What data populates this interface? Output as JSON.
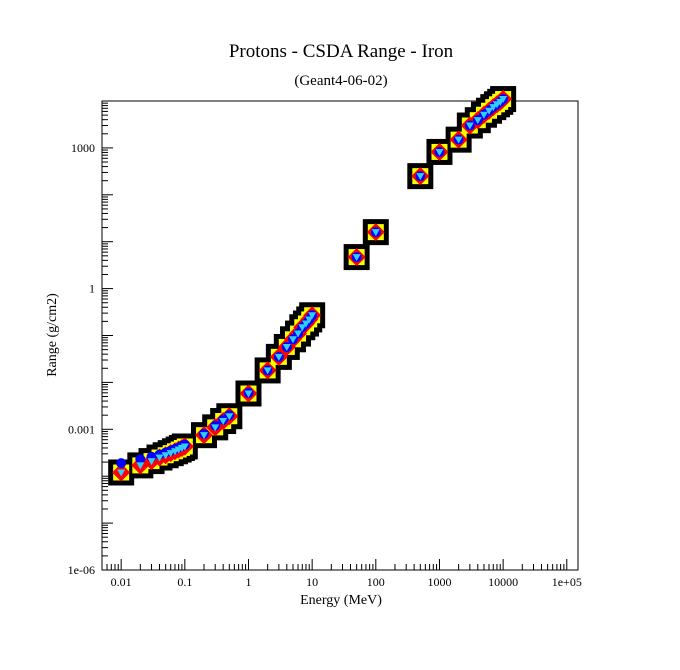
{
  "chart_data": {
    "type": "scatter",
    "title": "Protons - CSDA Range - Iron",
    "subtitle": "(Geant4-06-02)",
    "xlabel": "Energy (MeV)",
    "ylabel": "Range (g/cm2)",
    "x_scale": "log",
    "y_scale": "log",
    "xlim": [
      0.005,
      150000
    ],
    "ylim": [
      1e-06,
      10000
    ],
    "x_ticks": [
      {
        "value": 0.01,
        "label": "0.01"
      },
      {
        "value": 0.1,
        "label": "0.1"
      },
      {
        "value": 1,
        "label": "1"
      },
      {
        "value": 10,
        "label": "10"
      },
      {
        "value": 100,
        "label": "100"
      },
      {
        "value": 1000,
        "label": "1000"
      },
      {
        "value": 10000,
        "label": "10000"
      },
      {
        "value": 100000,
        "label": "1e+05"
      }
    ],
    "y_ticks": [
      {
        "value": 1e-06,
        "label": "1e-06"
      },
      {
        "value": 0.001,
        "label": "0.001"
      },
      {
        "value": 1,
        "label": "1"
      },
      {
        "value": 1000,
        "label": "1000"
      }
    ],
    "grid": false,
    "legend": "none",
    "x": [
      0.01,
      0.02,
      0.03,
      0.04,
      0.05,
      0.06,
      0.07,
      0.08,
      0.09,
      0.1,
      0.2,
      0.3,
      0.4,
      0.5,
      1,
      2,
      3,
      4,
      5,
      6,
      7,
      8,
      9,
      10,
      50,
      100,
      500,
      1000,
      2000,
      3000,
      4000,
      5000,
      6000,
      7000,
      8000,
      9000,
      10000
    ],
    "series": [
      {
        "values": [
          0.00012,
          0.00017,
          0.00021,
          0.00025,
          0.00028,
          0.00031,
          0.00034,
          0.00037,
          0.0004,
          0.00043,
          0.00075,
          0.0011,
          0.0015,
          0.0019,
          0.0058,
          0.018,
          0.035,
          0.057,
          0.083,
          0.11,
          0.15,
          0.18,
          0.22,
          0.27,
          4.7,
          16,
          250,
          820,
          1500,
          3000,
          3900,
          5100,
          6200,
          7400,
          8500,
          9600,
          11000
        ],
        "style": "black-square",
        "color": "#000000"
      },
      {
        "values": [
          0.00012,
          0.00017,
          0.00021,
          0.00025,
          0.00028,
          0.00031,
          0.00034,
          0.00037,
          0.0004,
          0.00043,
          0.00075,
          0.0011,
          0.0015,
          0.0019,
          0.0058,
          0.018,
          0.035,
          0.057,
          0.083,
          0.11,
          0.15,
          0.18,
          0.22,
          0.27,
          4.7,
          16,
          250,
          820,
          1500,
          3000,
          3900,
          5100,
          6200,
          7400,
          8500,
          9600,
          11000
        ],
        "style": "yellow-square",
        "color": "#ffff00"
      },
      {
        "values": [
          0.00012,
          0.00017,
          0.00021,
          0.00025,
          0.00028,
          0.00031,
          0.00034,
          0.00037,
          0.0004,
          0.00043,
          0.00075,
          0.0011,
          0.0015,
          0.0019,
          0.0058,
          0.018,
          0.035,
          0.057,
          0.083,
          0.11,
          0.15,
          0.18,
          0.22,
          0.27,
          4.7,
          16,
          250,
          820,
          1500,
          3000,
          3900,
          5100,
          6200,
          7400,
          8500,
          9600,
          11000
        ],
        "style": "red-diamond",
        "color": "#ff0000"
      },
      {
        "values": [
          0.00019,
          0.00023,
          0.00026,
          0.00029,
          0.00032,
          0.00035,
          0.00038,
          0.00041,
          0.00044,
          0.00047,
          0.0008,
          0.0012,
          0.0016,
          0.002,
          0.006,
          0.018,
          0.035,
          0.057,
          0.083,
          0.11,
          0.15,
          0.18,
          0.22,
          0.27,
          4.7,
          16,
          250,
          820,
          1500,
          3000,
          3900,
          5100,
          6200,
          7400,
          8500,
          9600,
          11000
        ],
        "style": "blue-circle",
        "color": "#0000ff"
      },
      {
        "values": [
          0.00012,
          0.00017,
          0.00021,
          0.00025,
          0.00028,
          0.00031,
          0.00034,
          0.00037,
          0.0004,
          0.00043,
          0.00075,
          0.0011,
          0.0015,
          0.0019,
          0.0058,
          0.018,
          0.035,
          0.057,
          0.083,
          0.11,
          0.15,
          0.18,
          0.22,
          0.27,
          4.7,
          16,
          250,
          820,
          1500,
          3000,
          3900,
          5100,
          6200,
          7400,
          8500,
          9600,
          11000
        ],
        "style": "cyan-triangle",
        "color": "#33ccff"
      }
    ]
  }
}
